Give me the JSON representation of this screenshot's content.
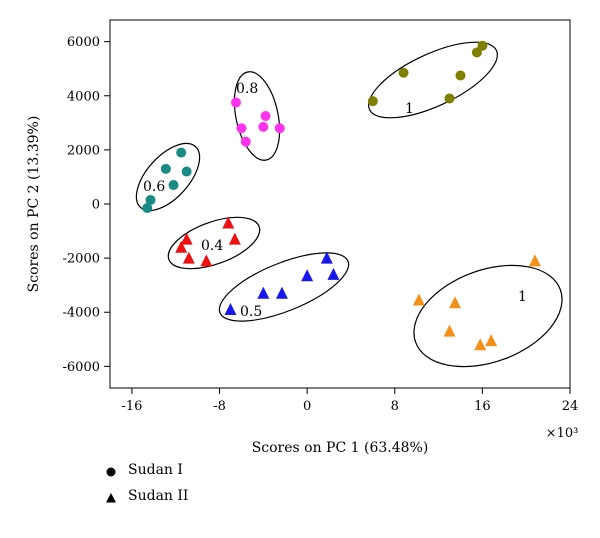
{
  "chart_data": {
    "type": "scatter",
    "xlabel": "Scores on PC 1 (63.48%)",
    "ylabel": "Scores on PC 2 (13.39%)",
    "x_multiplier_label": "×10³",
    "xlim": [
      -18,
      24
    ],
    "ylim": [
      -6800,
      6800
    ],
    "x_ticks": [
      -16,
      -8,
      0,
      8,
      16,
      24
    ],
    "y_ticks": [
      -6000,
      -4000,
      -2000,
      0,
      2000,
      4000,
      6000
    ],
    "grid": false,
    "legend_position": "bottom-left",
    "legend": [
      {
        "label": "Sudan I",
        "marker": "circle"
      },
      {
        "label": "Sudan II",
        "marker": "triangle"
      }
    ],
    "series": [
      {
        "compound": "Sudan I",
        "group_label": "0.6",
        "color": "#1a8a84",
        "marker": "circle",
        "points": [
          [
            -11.5,
            1900
          ],
          [
            -12.9,
            1300
          ],
          [
            -11.0,
            1200
          ],
          [
            -12.2,
            700
          ],
          [
            -14.3,
            150
          ],
          [
            -14.6,
            -150
          ]
        ]
      },
      {
        "compound": "Sudan I",
        "group_label": "0.8",
        "color": "#ff33ee",
        "marker": "circle",
        "points": [
          [
            -6.5,
            3750
          ],
          [
            -3.8,
            3250
          ],
          [
            -6.0,
            2800
          ],
          [
            -4.0,
            2850
          ],
          [
            -2.5,
            2800
          ],
          [
            -5.6,
            2300
          ]
        ]
      },
      {
        "compound": "Sudan I",
        "group_label": "1",
        "color": "#808000",
        "marker": "circle",
        "points": [
          [
            16.0,
            5850
          ],
          [
            15.5,
            5600
          ],
          [
            8.8,
            4850
          ],
          [
            14.0,
            4750
          ],
          [
            13.0,
            3900
          ],
          [
            6.0,
            3800
          ]
        ]
      },
      {
        "compound": "Sudan II",
        "group_label": "0.4",
        "color": "#ee1111",
        "marker": "triangle",
        "points": [
          [
            -7.2,
            -700
          ],
          [
            -11.0,
            -1300
          ],
          [
            -6.6,
            -1300
          ],
          [
            -11.5,
            -1600
          ],
          [
            -10.8,
            -2000
          ],
          [
            -9.2,
            -2100
          ]
        ]
      },
      {
        "compound": "Sudan II",
        "group_label": "0.5",
        "color": "#1818ee",
        "marker": "triangle",
        "points": [
          [
            1.8,
            -2000
          ],
          [
            0.0,
            -2650
          ],
          [
            2.4,
            -2600
          ],
          [
            -4.0,
            -3300
          ],
          [
            -2.3,
            -3300
          ],
          [
            -7.0,
            -3900
          ]
        ]
      },
      {
        "compound": "Sudan II",
        "group_label": "1",
        "color": "#f39019",
        "marker": "triangle",
        "points": [
          [
            20.8,
            -2100
          ],
          [
            10.2,
            -3550
          ],
          [
            13.5,
            -3650
          ],
          [
            13.0,
            -4700
          ],
          [
            16.8,
            -5050
          ],
          [
            15.8,
            -5200
          ]
        ]
      }
    ]
  }
}
